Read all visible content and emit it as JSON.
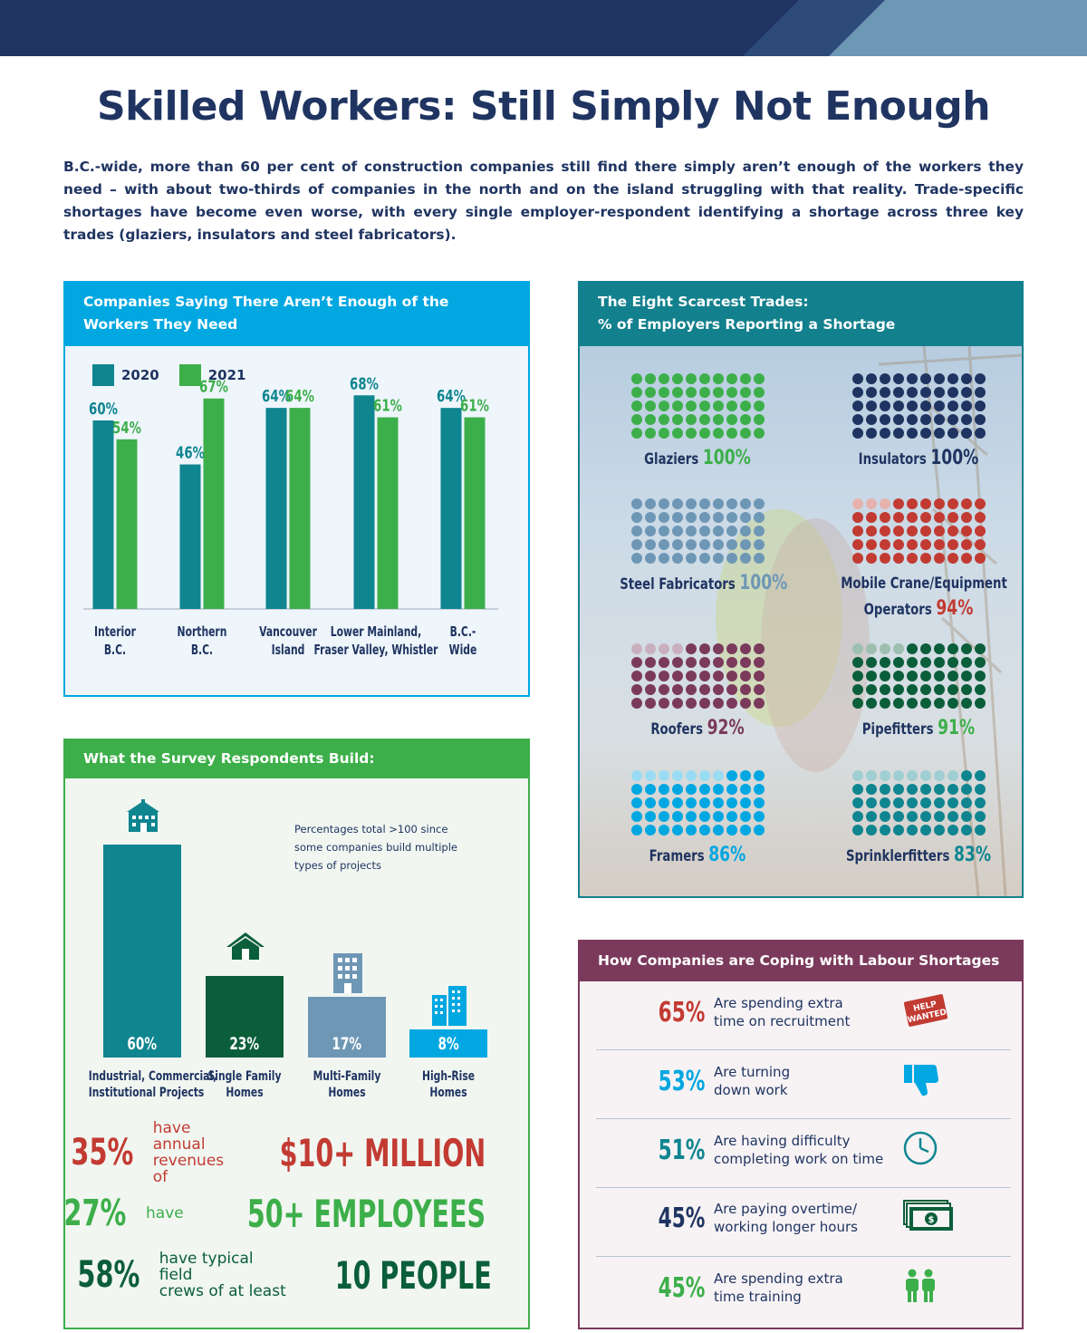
{
  "header": {
    "title": "Skilled Workers: Still Simply Not Enough",
    "intro": "B.C.-wide, more than 60 per cent of construction companies still find there simply aren’t enough of the workers they need – with about two-thirds of companies in the north and on the island struggling with that reality. Trade-specific shortages have become even worse, with every single employer-respondent identifying a shortage across three key trades (glaziers, insulators and steel fabricators)."
  },
  "colors": {
    "navy": "#1f3461",
    "teal": "#0f8590",
    "green": "#3daf4a",
    "dark_green": "#0b5e3a",
    "slate": "#6e97b6",
    "sky": "#00a7e1",
    "red": "#c23b32",
    "plum": "#7b3a5c"
  },
  "panel_workers": {
    "title_line1": "Companies Saying There Aren’t Enough of the",
    "title_line2": "Workers They Need"
  },
  "panel_build": {
    "title": "What the Survey Respondents Build:",
    "note_line1": "Percentages total >100 since",
    "note_line2": "some companies build multiple",
    "note_line3": "types of projects",
    "stats": [
      {
        "pct": "35%",
        "mid1": "have annual",
        "mid2": "revenues of",
        "big": "$10+ MILLION",
        "color": "#c23b32"
      },
      {
        "pct": "27%",
        "mid1": "have",
        "mid2": "",
        "big": "50+ EMPLOYEES",
        "color": "#3daf4a"
      },
      {
        "pct": "58%",
        "mid1": "have typical field",
        "mid2": "crews of at least",
        "big": "10 PEOPLE",
        "color": "#0b5e3a"
      }
    ]
  },
  "panel_trades": {
    "title_line1": "The Eight Scarcest Trades:",
    "title_line2": "% of Employers Reporting a Shortage"
  },
  "panel_coping": {
    "title": "How Companies are Coping with Labour Shortages",
    "help_wanted_line1": "HELP",
    "help_wanted_line2": "WANTED",
    "rows": [
      {
        "pct": "65%",
        "text1": "Are spending extra",
        "text2": "time on recruitment",
        "color": "#c23b32",
        "icon": "help-wanted-sign-icon"
      },
      {
        "pct": "53%",
        "text1": "Are turning",
        "text2": "down work",
        "color": "#00a7e1",
        "icon": "thumbs-down-icon"
      },
      {
        "pct": "51%",
        "text1": "Are having difficulty",
        "text2": "completing work on time",
        "color": "#0f8590",
        "icon": "clock-icon"
      },
      {
        "pct": "45%",
        "text1": "Are paying overtime/",
        "text2": "working longer hours",
        "color": "#1f3461",
        "icon": "money-icon"
      },
      {
        "pct": "45%",
        "text1": "Are spending extra",
        "text2": "time training",
        "color": "#3daf4a",
        "icon": "people-icon"
      }
    ]
  },
  "chart_data": [
    {
      "type": "bar",
      "title": "Companies Saying There Aren’t Enough of the Workers They Need",
      "categories": [
        "Interior B.C.",
        "Northern B.C.",
        "Vancouver Island",
        "Lower Mainland, Fraser Valley, Whistler",
        "B.C.-Wide"
      ],
      "category_lines": [
        [
          "Interior",
          "B.C."
        ],
        [
          "Northern",
          "B.C."
        ],
        [
          "Vancouver",
          "Island"
        ],
        [
          "Lower Mainland,",
          "Fraser Valley, Whistler"
        ],
        [
          "B.C.-",
          "Wide"
        ]
      ],
      "series": [
        {
          "name": "2020",
          "values": [
            60,
            46,
            64,
            68,
            64
          ],
          "color": "#0f8590"
        },
        {
          "name": "2021",
          "values": [
            54,
            67,
            64,
            61,
            61
          ],
          "color": "#3daf4a"
        }
      ],
      "unit": "%",
      "ylim": [
        0,
        75
      ],
      "legend": "top-left",
      "grid": false
    },
    {
      "type": "bar",
      "title": "What the Survey Respondents Build:",
      "categories": [
        "Industrial, Commercial, Institutional Projects",
        "Single Family Homes",
        "Multi-Family Homes",
        "High-Rise Homes"
      ],
      "category_lines": [
        [
          "Industrial, Commercial,",
          "Institutional Projects"
        ],
        [
          "Single Family",
          "Homes"
        ],
        [
          "Multi-Family",
          "Homes"
        ],
        [
          "High-Rise",
          "Homes"
        ]
      ],
      "values": [
        60,
        23,
        17,
        8
      ],
      "colors": [
        "#0f8590",
        "#0b5e3a",
        "#6e97b6",
        "#00a7e1"
      ],
      "icons": [
        "school-building-icon",
        "house-icon",
        "apartment-icon",
        "high-rise-icon"
      ],
      "unit": "%",
      "ylim": [
        0,
        60
      ]
    },
    {
      "type": "dot-matrix",
      "title": "The Eight Scarcest Trades: % of Employers Reporting a Shortage",
      "dots_per_trade": 50,
      "trades": [
        {
          "name": "Glaziers",
          "value": 100,
          "color": "#3daf4a",
          "label_color": "#3daf4a"
        },
        {
          "name": "Insulators",
          "value": 100,
          "color": "#1f3461",
          "label_color": "#1f3461"
        },
        {
          "name": "Steel Fabricators",
          "value": 100,
          "color": "#6e97b6",
          "label_color": "#6e97b6"
        },
        {
          "name": "Mobile Crane/Equipment Operators",
          "value": 94,
          "color": "#c23b32",
          "label_color": "#c23b32",
          "lines": [
            "Mobile Crane/Equipment",
            "Operators"
          ]
        },
        {
          "name": "Roofers",
          "value": 92,
          "color": "#7b3a5c",
          "label_color": "#7b3a5c"
        },
        {
          "name": "Pipefitters",
          "value": 91,
          "color": "#0b5e3a",
          "label_color": "#3daf4a"
        },
        {
          "name": "Framers",
          "value": 86,
          "color": "#00a7e1",
          "label_color": "#00a7e1"
        },
        {
          "name": "Sprinklerfitters",
          "value": 83,
          "color": "#0f8590",
          "label_color": "#0f8590"
        }
      ]
    }
  ]
}
